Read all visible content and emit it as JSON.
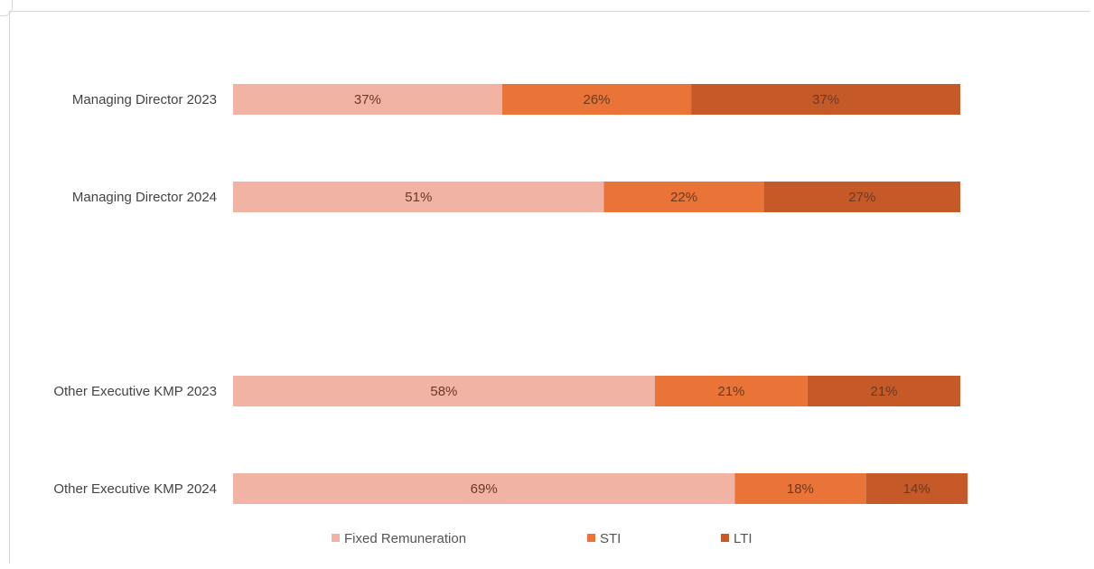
{
  "chart_data": {
    "type": "bar",
    "orientation": "horizontal",
    "stacked": true,
    "categories": [
      "Managing Director 2023",
      "Managing Director 2024",
      "Other Executive KMP 2023",
      "Other Executive KMP 2024"
    ],
    "series": [
      {
        "name": "Fixed Remuneration",
        "color": "#f0b3a4",
        "values": [
          37,
          51,
          58,
          69
        ],
        "labels": [
          "37%",
          "51%",
          "58%",
          "69%"
        ]
      },
      {
        "name": "STI",
        "color": "#ea7337",
        "values": [
          26,
          22,
          21,
          18
        ],
        "labels": [
          "26%",
          "22%",
          "21%",
          "18%"
        ]
      },
      {
        "name": "LTI",
        "color": "#c55a28",
        "values": [
          37,
          27,
          21,
          14
        ],
        "labels": [
          "37%",
          "27%",
          "21%",
          "14%"
        ]
      }
    ],
    "xlim": [
      0,
      100
    ],
    "grid": false,
    "legend_position": "bottom"
  }
}
